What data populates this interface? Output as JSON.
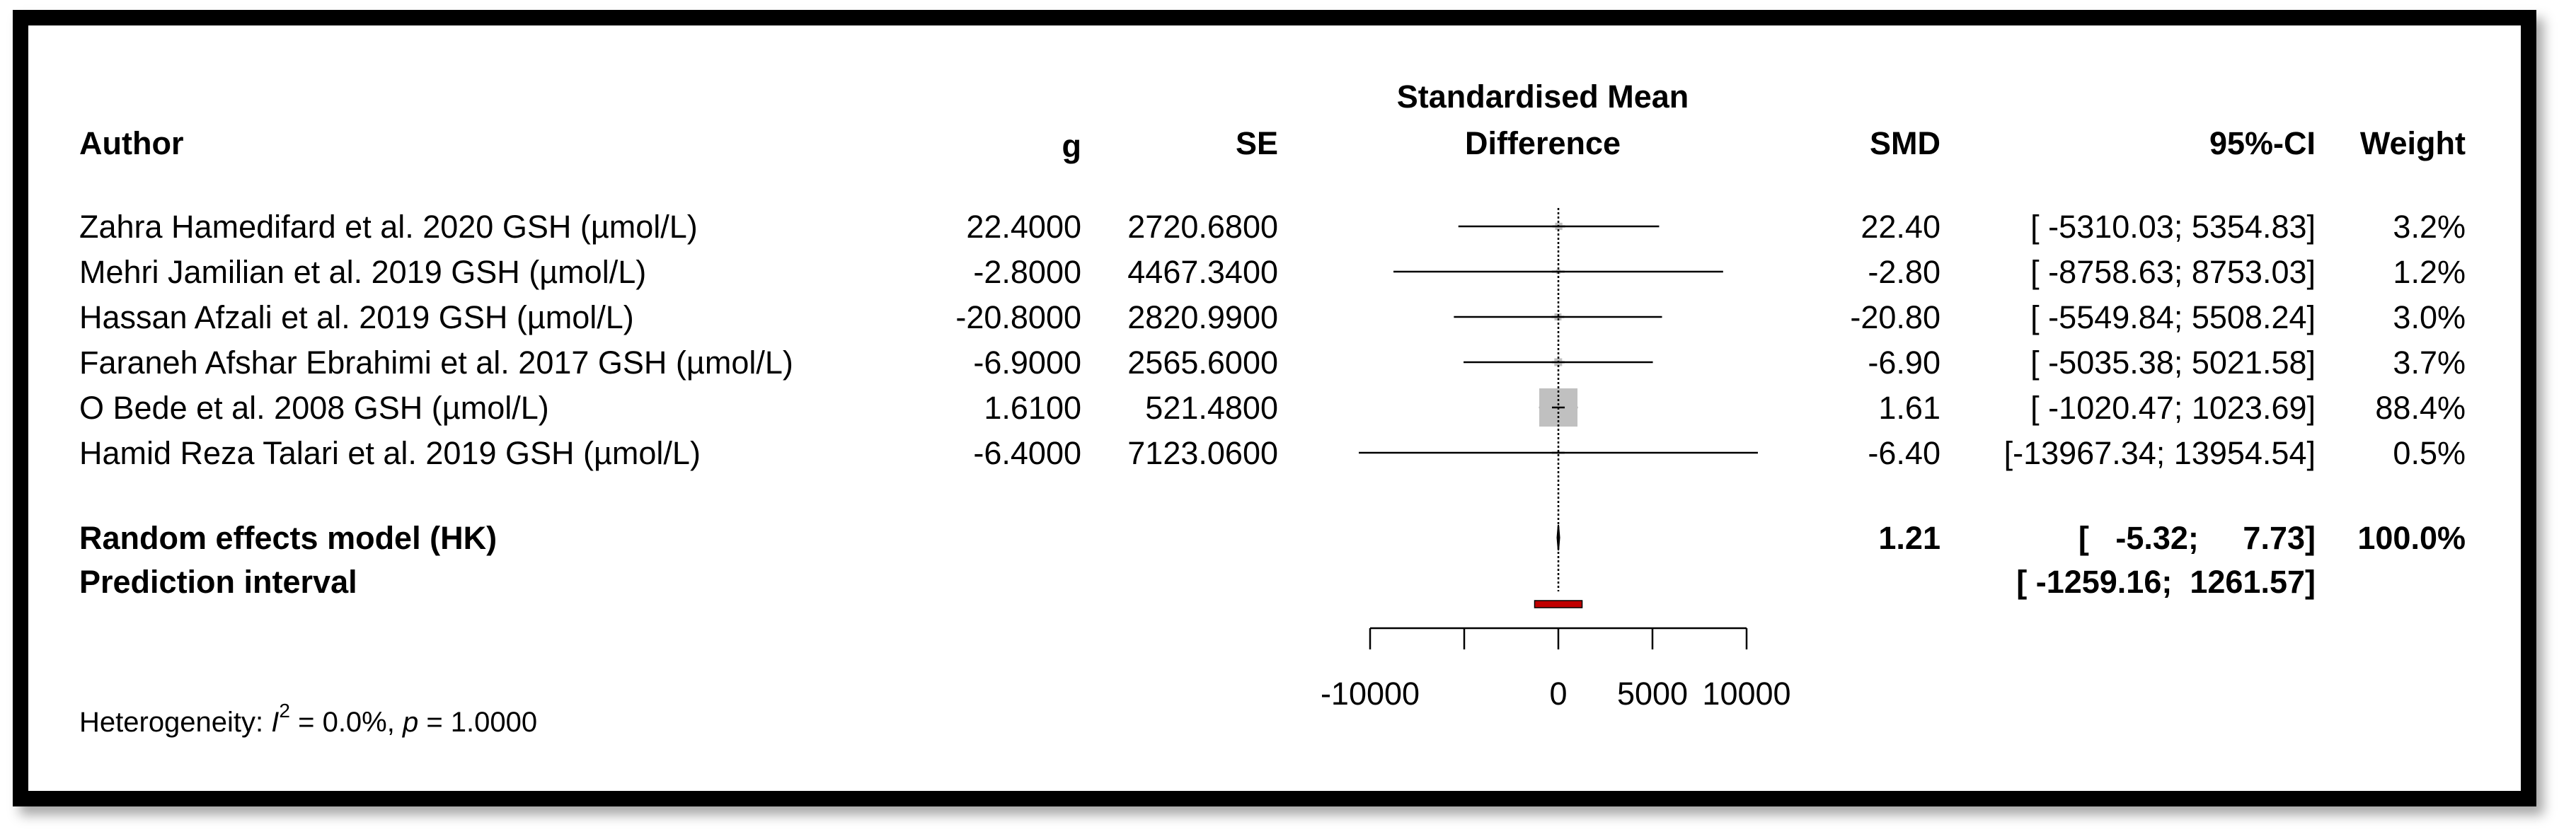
{
  "chart_data": {
    "type": "forest",
    "columns": {
      "author": "Author",
      "g": "g",
      "se": "SE",
      "plot_title_line1": "Standardised Mean",
      "plot_title_line2": "Difference",
      "smd": "SMD",
      "ci": "95%-CI",
      "weight": "Weight"
    },
    "studies": [
      {
        "author": "Zahra Hamedifard et al. 2020 GSH (µmol/L)",
        "g_text": "22.4000",
        "se_text": "2720.6800",
        "smd_text": "22.40",
        "ci_text": "[ -5310.03;  5354.83]",
        "weight_text": "3.2%",
        "smd": 22.4,
        "lower": -5310.03,
        "upper": 5354.83,
        "weight": 3.2
      },
      {
        "author": "Mehri Jamilian et al. 2019 GSH (µmol/L)",
        "g_text": "-2.8000",
        "se_text": "4467.3400",
        "smd_text": "-2.80",
        "ci_text": "[ -8758.63;  8753.03]",
        "weight_text": "1.2%",
        "smd": -2.8,
        "lower": -8758.63,
        "upper": 8753.03,
        "weight": 1.2
      },
      {
        "author": "Hassan Afzali et al. 2019 GSH (µmol/L)",
        "g_text": "-20.8000",
        "se_text": "2820.9900",
        "smd_text": "-20.80",
        "ci_text": "[ -5549.84;  5508.24]",
        "weight_text": "3.0%",
        "smd": -20.8,
        "lower": -5549.84,
        "upper": 5508.24,
        "weight": 3.0
      },
      {
        "author": "Faraneh Afshar Ebrahimi et al. 2017 GSH (µmol/L)",
        "g_text": "-6.9000",
        "se_text": "2565.6000",
        "smd_text": "-6.90",
        "ci_text": "[ -5035.38;  5021.58]",
        "weight_text": "3.7%",
        "smd": -6.9,
        "lower": -5035.38,
        "upper": 5021.58,
        "weight": 3.7
      },
      {
        "author": "O Bede et al. 2008 GSH (µmol/L)",
        "g_text": "1.6100",
        "se_text": "521.4800",
        "smd_text": "1.61",
        "ci_text": "[ -1020.47;  1023.69]",
        "weight_text": "88.4%",
        "smd": 1.61,
        "lower": -1020.47,
        "upper": 1023.69,
        "weight": 88.4
      },
      {
        "author": "Hamid Reza Talari et al. 2019 GSH (µmol/L)",
        "g_text": "-6.4000",
        "se_text": "7123.0600",
        "smd_text": "-6.40",
        "ci_text": "[-13967.34; 13954.54]",
        "weight_text": "0.5%",
        "smd": -6.4,
        "lower": -13967.34,
        "upper": 13954.54,
        "weight": 0.5
      }
    ],
    "random_effects": {
      "label": "Random effects model (HK)",
      "smd_text": "1.21",
      "ci_text": "[   -5.32;     7.73]",
      "weight_text": "100.0%",
      "smd": 1.21,
      "lower": -5.32,
      "upper": 7.73
    },
    "prediction_interval": {
      "label": "Prediction interval",
      "ci_text": "[ -1259.16;  1261.57]",
      "lower": -1259.16,
      "upper": 1261.57
    },
    "heterogeneity": {
      "prefix": "Heterogeneity: ",
      "i_letter": "I",
      "sup": "2",
      "i2_text": " = 0.0%, ",
      "p_letter": "p",
      "p_text": " = 1.0000"
    },
    "axis": {
      "xlim": [
        -10000,
        10000
      ],
      "ticks": [
        -10000,
        -5000,
        0,
        5000,
        10000
      ],
      "tick_labels": [
        "-10000",
        "",
        "0",
        "5000",
        "10000"
      ]
    },
    "colors": {
      "square": "#c0c0c0",
      "prediction": "#c00000",
      "line": "#000000"
    }
  }
}
